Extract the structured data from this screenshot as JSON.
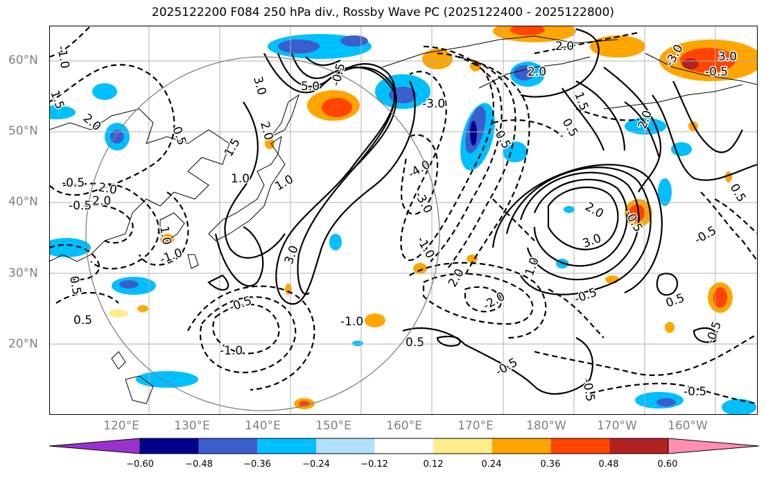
{
  "title": "2025122200 F084 250 hPa div., Rossby Wave PC (2025122400 - 2025122800)",
  "lat_labels": [
    "60°N",
    "50°N",
    "40°N",
    "30°N",
    "20°N"
  ],
  "lon_labels": [
    "120°E",
    "130°E",
    "140°E",
    "150°E",
    "160°E",
    "170°E",
    "180°W",
    "170°W",
    "160°W"
  ],
  "contour_labels": [
    "-1.0",
    "1.5",
    "2.0",
    "0.5",
    "-0.5",
    "2.0",
    "-2.0",
    "-0.5",
    "1.0",
    "0.5",
    "3.0",
    "2.0",
    "5.0",
    "1.5",
    "1.0",
    "1.0",
    "-0.5",
    "3.0",
    "-1.0",
    "-4.0",
    "-3.0",
    "-1.0",
    "-3.0",
    "-0.5",
    "2.0",
    "2.0",
    "1.5",
    "0.5",
    "2.0",
    "-3.0",
    "-0.5",
    "2.0",
    "3.0",
    "-0.5",
    "3.0",
    "0.5",
    "-0.5",
    "1.0",
    "-0.5",
    "0.5",
    "2.0",
    "-2.0",
    "-1.0",
    "-0.5",
    "0.5",
    "-0.5",
    "-1.0",
    "0.5",
    "-0.5",
    "-0.5",
    "-0.5"
  ],
  "colorbar": {
    "ticks": [
      "−0.60",
      "−0.48",
      "−0.36",
      "−0.24",
      "−0.12",
      "0.12",
      "0.24",
      "0.36",
      "0.48",
      "0.60"
    ],
    "colors": [
      "#9932CC",
      "#00008B",
      "#3A5FCD",
      "#00BFFF",
      "#B0E0FF",
      "#FFFFFF",
      "#FFEC8B",
      "#FFA500",
      "#FF4500",
      "#B22222",
      "#FF8FB0"
    ]
  }
}
